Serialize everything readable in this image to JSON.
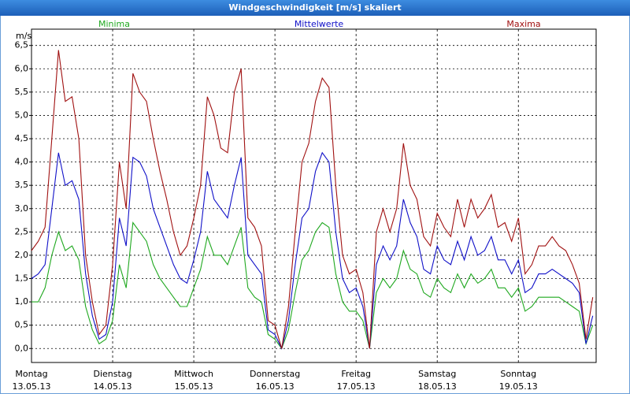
{
  "chart_data": {
    "type": "line",
    "title": "Windgeschwindigkeit [m/s] skaliert",
    "y_unit": "m/s",
    "x": [
      0,
      2,
      4,
      6,
      8,
      10,
      12,
      14,
      16,
      18,
      20,
      22,
      24,
      26,
      28,
      30,
      32,
      34,
      36,
      38,
      40,
      42,
      44,
      46,
      48,
      50,
      52,
      54,
      56,
      58,
      60,
      62,
      64,
      66,
      68,
      70,
      72,
      74,
      76,
      78,
      80,
      82,
      84,
      86,
      88,
      90,
      92,
      94,
      96,
      98,
      100,
      102,
      104,
      106,
      108,
      110,
      112,
      114,
      116,
      118,
      120,
      122,
      124,
      126,
      128,
      130,
      132,
      134,
      136,
      138,
      140,
      142,
      144,
      146,
      148,
      150,
      152,
      154,
      156,
      158,
      160,
      162,
      164,
      166
    ],
    "xlim": [
      0,
      167
    ],
    "xticks": [
      {
        "value": 0,
        "label": "Montag",
        "date": "13.05.13"
      },
      {
        "value": 24,
        "label": "Dienstag",
        "date": "14.05.13"
      },
      {
        "value": 48,
        "label": "Mittwoch",
        "date": "15.05.13"
      },
      {
        "value": 72,
        "label": "Donnerstag",
        "date": "16.05.13"
      },
      {
        "value": 96,
        "label": "Freitag",
        "date": "17.05.13"
      },
      {
        "value": 120,
        "label": "Samstag",
        "date": "18.05.13"
      },
      {
        "value": 144,
        "label": "Sonntag",
        "date": "19.05.13"
      }
    ],
    "ylim": [
      -0.3,
      6.85
    ],
    "yticks": [
      {
        "value": 0,
        "label": "0,0"
      },
      {
        "value": 0.5,
        "label": "0,5"
      },
      {
        "value": 1,
        "label": "1,0"
      },
      {
        "value": 1.5,
        "label": "1,5"
      },
      {
        "value": 2,
        "label": "2,0"
      },
      {
        "value": 2.5,
        "label": "2,5"
      },
      {
        "value": 3,
        "label": "3,0"
      },
      {
        "value": 3.5,
        "label": "3,5"
      },
      {
        "value": 4,
        "label": "4,0"
      },
      {
        "value": 4.5,
        "label": "4,5"
      },
      {
        "value": 5,
        "label": "5,0"
      },
      {
        "value": 5.5,
        "label": "5,5"
      },
      {
        "value": 6,
        "label": "6,0"
      },
      {
        "value": 6.5,
        "label": "6,5"
      }
    ],
    "grid": true,
    "series": [
      {
        "name": "Minima",
        "color": "#1fa81f",
        "values": [
          1.0,
          1.0,
          1.3,
          2.0,
          2.5,
          2.1,
          2.2,
          1.9,
          0.9,
          0.4,
          0.1,
          0.2,
          0.6,
          1.8,
          1.3,
          2.7,
          2.5,
          2.3,
          1.8,
          1.5,
          1.3,
          1.1,
          0.9,
          0.9,
          1.3,
          1.7,
          2.4,
          2.0,
          2.0,
          1.8,
          2.2,
          2.6,
          1.3,
          1.1,
          1.0,
          0.3,
          0.2,
          0.0,
          0.4,
          1.2,
          1.9,
          2.1,
          2.5,
          2.7,
          2.6,
          1.6,
          1.0,
          0.8,
          0.8,
          0.6,
          0.0,
          1.2,
          1.5,
          1.3,
          1.5,
          2.1,
          1.7,
          1.6,
          1.2,
          1.1,
          1.5,
          1.3,
          1.2,
          1.6,
          1.3,
          1.6,
          1.4,
          1.5,
          1.7,
          1.3,
          1.3,
          1.1,
          1.3,
          0.8,
          0.9,
          1.1,
          1.1,
          1.1,
          1.1,
          1.0,
          0.9,
          0.8,
          0.1,
          0.5
        ]
      },
      {
        "name": "Mittelwerte",
        "color": "#1010c8",
        "values": [
          1.5,
          1.6,
          1.8,
          3.0,
          4.2,
          3.5,
          3.6,
          3.2,
          1.6,
          0.7,
          0.2,
          0.3,
          1.0,
          2.8,
          2.2,
          4.1,
          4.0,
          3.7,
          3.0,
          2.6,
          2.2,
          1.8,
          1.5,
          1.4,
          1.9,
          2.5,
          3.8,
          3.2,
          3.0,
          2.8,
          3.5,
          4.1,
          2.0,
          1.8,
          1.6,
          0.4,
          0.3,
          0.0,
          0.6,
          1.8,
          2.8,
          3.0,
          3.8,
          4.2,
          4.0,
          2.5,
          1.5,
          1.2,
          1.3,
          0.9,
          0.0,
          1.8,
          2.2,
          1.9,
          2.2,
          3.2,
          2.7,
          2.4,
          1.7,
          1.6,
          2.2,
          1.9,
          1.8,
          2.3,
          1.9,
          2.4,
          2.0,
          2.1,
          2.4,
          1.9,
          1.9,
          1.6,
          1.9,
          1.2,
          1.3,
          1.6,
          1.6,
          1.7,
          1.6,
          1.5,
          1.4,
          1.2,
          0.1,
          0.7
        ]
      },
      {
        "name": "Maxima",
        "color": "#a01010",
        "values": [
          2.1,
          2.3,
          2.6,
          4.5,
          6.4,
          5.3,
          5.4,
          4.5,
          2.0,
          1.0,
          0.3,
          0.5,
          1.8,
          4.0,
          3.0,
          5.9,
          5.5,
          5.3,
          4.5,
          3.8,
          3.2,
          2.5,
          2.0,
          2.2,
          2.8,
          3.5,
          5.4,
          5.0,
          4.3,
          4.2,
          5.5,
          6.0,
          2.8,
          2.6,
          2.2,
          0.6,
          0.5,
          0.0,
          0.9,
          2.5,
          4.0,
          4.4,
          5.3,
          5.8,
          5.6,
          3.5,
          2.0,
          1.6,
          1.7,
          1.2,
          0.0,
          2.5,
          3.0,
          2.5,
          3.0,
          4.4,
          3.5,
          3.2,
          2.4,
          2.2,
          2.9,
          2.6,
          2.4,
          3.2,
          2.6,
          3.2,
          2.8,
          3.0,
          3.3,
          2.6,
          2.7,
          2.3,
          2.8,
          1.6,
          1.8,
          2.2,
          2.2,
          2.4,
          2.2,
          2.1,
          1.8,
          1.4,
          0.2,
          1.1
        ]
      }
    ]
  }
}
